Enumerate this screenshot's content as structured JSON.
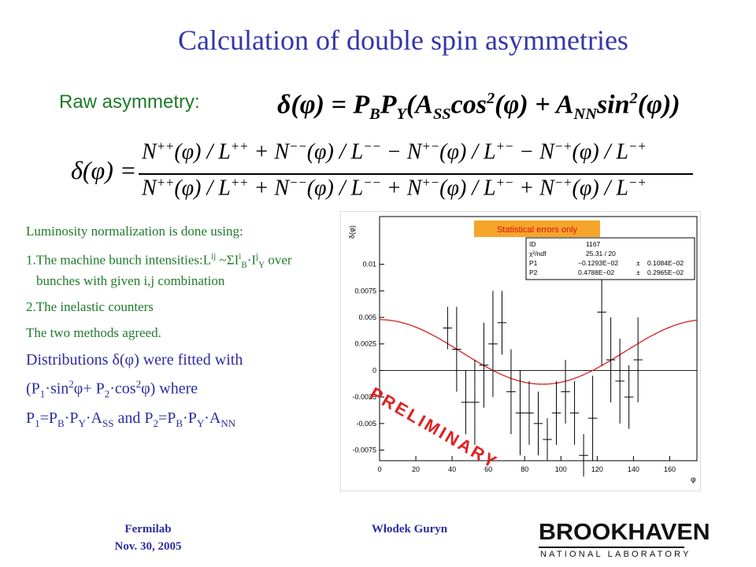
{
  "title": "Calculation of double spin asymmetries",
  "raw_label": "Raw asymmetry:",
  "formula_raw": [
    {
      "t": "δ(φ) = P"
    },
    {
      "sub": "B"
    },
    {
      "t": "P"
    },
    {
      "sub": "Y"
    },
    {
      "t": "(A"
    },
    {
      "sub": "SS"
    },
    {
      "t": "cos"
    },
    {
      "sup": "2"
    },
    {
      "t": "(φ) + A"
    },
    {
      "sub": "NN"
    },
    {
      "t": "sin"
    },
    {
      "sup": "2"
    },
    {
      "t": "(φ))"
    }
  ],
  "formula_lhs": "δ(φ) =",
  "formula_numerator": [
    {
      "t": "N"
    },
    {
      "sup": "++"
    },
    {
      "t": "(φ) / L"
    },
    {
      "sup": "++"
    },
    {
      "t": " + N"
    },
    {
      "sup": "−−"
    },
    {
      "t": "(φ) / L"
    },
    {
      "sup": "−−"
    },
    {
      "t": " − N"
    },
    {
      "sup": "+−"
    },
    {
      "t": "(φ) / L"
    },
    {
      "sup": "+−"
    },
    {
      "t": " − N"
    },
    {
      "sup": "−+"
    },
    {
      "t": "(φ) / L"
    },
    {
      "sup": "−+"
    }
  ],
  "formula_denominator": [
    {
      "t": "N"
    },
    {
      "sup": "++"
    },
    {
      "t": "(φ) / L"
    },
    {
      "sup": "++"
    },
    {
      "t": " + N"
    },
    {
      "sup": "−−"
    },
    {
      "t": "(φ) / L"
    },
    {
      "sup": "−−"
    },
    {
      "t": " + N"
    },
    {
      "sup": "+−"
    },
    {
      "t": "(φ) / L"
    },
    {
      "sup": "+−"
    },
    {
      "t": " + N"
    },
    {
      "sup": "−+"
    },
    {
      "t": "(φ) / L"
    },
    {
      "sup": "−+"
    }
  ],
  "notes": [
    [
      {
        "t": "Luminosity normalization is done using:"
      }
    ],
    [
      {
        "t": "1.The machine bunch intensities:L"
      },
      {
        "sup": "ij"
      },
      {
        "t": " ~ΣI"
      },
      {
        "sup": "i"
      },
      {
        "sub": "B"
      },
      {
        "t": "·I"
      },
      {
        "sup": "j"
      },
      {
        "sub": "Y"
      },
      {
        "t": " over bunches with given i,j combination"
      }
    ],
    [
      {
        "t": "2.The inelastic counters"
      }
    ],
    [
      {
        "t": "The two methods agreed."
      }
    ]
  ],
  "fit_text": [
    [
      {
        "t": "Distributions δ(φ) were fitted with"
      }
    ],
    [
      {
        "t": " (P"
      },
      {
        "sub": "1"
      },
      {
        "t": "·sin"
      },
      {
        "sup": "2"
      },
      {
        "t": "φ+ P"
      },
      {
        "sub": "2"
      },
      {
        "t": "·cos"
      },
      {
        "sup": "2"
      },
      {
        "t": "φ) where"
      }
    ],
    [
      {
        "t": "P"
      },
      {
        "sub": "1"
      },
      {
        "t": "=P"
      },
      {
        "sub": "B"
      },
      {
        "t": "·P"
      },
      {
        "sub": "Y"
      },
      {
        "t": "·A"
      },
      {
        "sub": "SS"
      },
      {
        "t": " and P"
      },
      {
        "sub": "2"
      },
      {
        "t": "=P"
      },
      {
        "sub": "B"
      },
      {
        "t": "·P"
      },
      {
        "sub": "Y"
      },
      {
        "t": "·A"
      },
      {
        "sub": "NN"
      }
    ]
  ],
  "chart_data": {
    "type": "errorbar",
    "x_label": "φ",
    "y_label": "δ(φ)",
    "x": [
      37.5,
      42.5,
      47.5,
      52.5,
      57.5,
      62.5,
      67.5,
      72.5,
      77.5,
      82.5,
      87.5,
      92.5,
      97.5,
      102.5,
      107.5,
      112.5,
      117.5,
      122.5,
      127.5,
      132.5,
      137.5,
      142.5
    ],
    "values": [
      0.004,
      0.002,
      -0.003,
      -0.003,
      0.0005,
      0.0025,
      0.0045,
      -0.002,
      -0.004,
      -0.004,
      -0.005,
      -0.0065,
      -0.004,
      -0.002,
      -0.004,
      -0.008,
      -0.0045,
      0.0055,
      0.001,
      -0.001,
      -0.0025,
      0.001
    ],
    "errors": [
      0.002,
      0.004,
      0.003,
      0.004,
      0.004,
      0.005,
      0.003,
      0.004,
      0.004,
      0.003,
      0.003,
      0.002,
      0.003,
      0.003,
      0.003,
      0.002,
      0.004,
      0.005,
      0.004,
      0.004,
      0.003,
      0.004
    ],
    "xlim": [
      0,
      175
    ],
    "xticks": [
      0,
      20,
      40,
      60,
      80,
      100,
      120,
      140,
      160
    ],
    "ylim": [
      -0.0085,
      0.0145
    ],
    "yticks": [
      -0.0075,
      -0.005,
      -0.0025,
      0,
      0.0025,
      0.005,
      0.0075,
      0.01
    ],
    "color": "#000000",
    "fit_color": "#d42020",
    "stats": [
      {
        "name": "ID",
        "label": "1167"
      },
      {
        "name": "χ²/ndf",
        "label": "25.31  /  20"
      }
    ],
    "fit_params": [
      {
        "name": "P1",
        "value": -0.001293,
        "value_label": "−0.1293E−02",
        "error_label": "0.1084E−02"
      },
      {
        "name": "P2",
        "value": 0.004788,
        "value_label": "0.4788E−02",
        "error_label": "0.2965E−02"
      }
    ],
    "note": "Statistical errors only",
    "watermark": "PRELIMINARY"
  },
  "footer": {
    "left_1": "Fermilab",
    "left_2": "Nov. 30, 2005",
    "center": "Włodek Guryn",
    "logo_1": "BROOKHAVEN",
    "logo_2": "NATIONAL LABORATORY"
  }
}
